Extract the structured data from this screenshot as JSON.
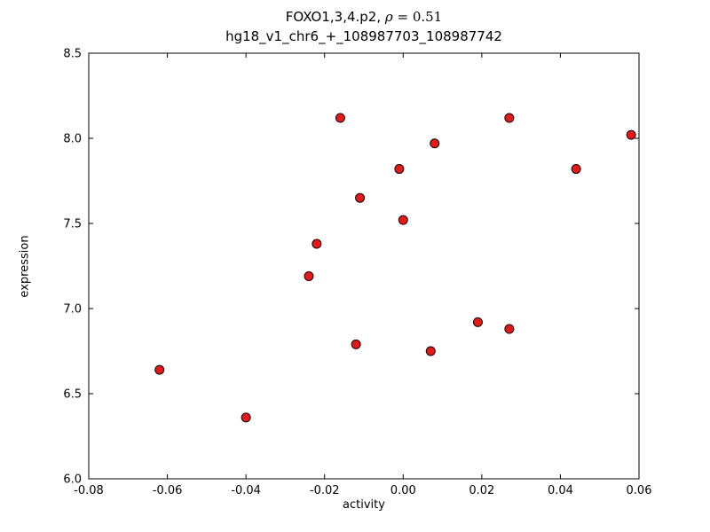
{
  "title": {
    "line1_prefix": "FOXO1,3,4.p2, ",
    "line1_rho": "ρ",
    "line1_suffix": " = 0.51",
    "line2": "hg18_v1_chr6_+_108987703_108987742"
  },
  "chart_data": {
    "type": "scatter",
    "title": "FOXO1,3,4.p2, ρ = 0.51",
    "subtitle": "hg18_v1_chr6_+_108987703_108987742",
    "xlabel": "activity",
    "ylabel": "expression",
    "xlim": [
      -0.08,
      0.06
    ],
    "ylim": [
      6.0,
      8.5
    ],
    "x_ticks": [
      -0.08,
      -0.06,
      -0.04,
      -0.02,
      0.0,
      0.02,
      0.04,
      0.06
    ],
    "x_tick_labels": [
      "-0.08",
      "-0.06",
      "-0.04",
      "-0.02",
      "0.00",
      "0.02",
      "0.04",
      "0.06"
    ],
    "y_ticks": [
      6.0,
      6.5,
      7.0,
      7.5,
      8.0,
      8.5
    ],
    "y_tick_labels": [
      "6.0",
      "6.5",
      "7.0",
      "7.5",
      "8.0",
      "8.5"
    ],
    "grid": false,
    "legend": "none",
    "marker": {
      "shape": "circle",
      "radius": 5,
      "fill_color": "#dd1c1c",
      "edge_color": "#200000",
      "edge_width": 1
    },
    "frame_color": "#000000",
    "points": [
      {
        "x": -0.062,
        "y": 6.64
      },
      {
        "x": -0.04,
        "y": 6.36
      },
      {
        "x": -0.024,
        "y": 7.19
      },
      {
        "x": -0.022,
        "y": 7.38
      },
      {
        "x": -0.016,
        "y": 8.12
      },
      {
        "x": -0.012,
        "y": 6.79
      },
      {
        "x": -0.011,
        "y": 7.65
      },
      {
        "x": -0.001,
        "y": 7.82
      },
      {
        "x": 0.0,
        "y": 7.52
      },
      {
        "x": 0.008,
        "y": 7.97
      },
      {
        "x": 0.007,
        "y": 6.75
      },
      {
        "x": 0.019,
        "y": 6.92
      },
      {
        "x": 0.027,
        "y": 8.12
      },
      {
        "x": 0.027,
        "y": 6.88
      },
      {
        "x": 0.044,
        "y": 7.82
      },
      {
        "x": 0.058,
        "y": 8.02
      }
    ]
  }
}
